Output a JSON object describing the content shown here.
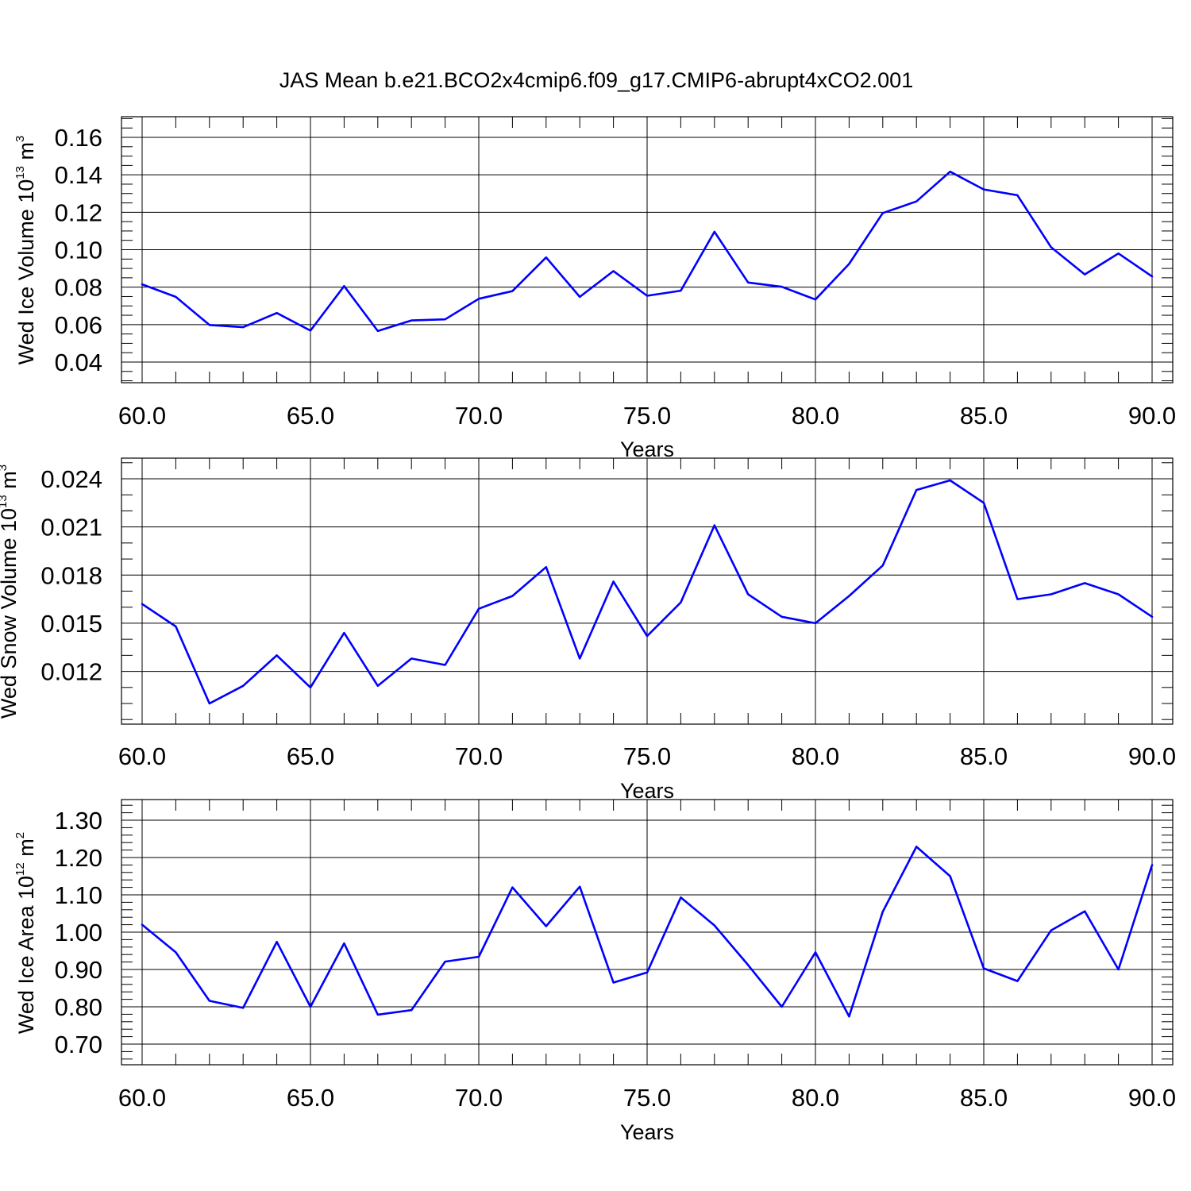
{
  "figure": {
    "title": "JAS Mean b.e21.BCO2x4cmip6.f09_g17.CMIP6-abrupt4xCO2.001"
  },
  "colors": {
    "series": "#0000ff",
    "axes": "#000000",
    "grid": "#7f7f7f"
  },
  "chart_data": [
    {
      "type": "line",
      "xlabel": "Years",
      "ylabel_prefix": "Wed Ice Volume 10",
      "ylabel_exp": "13",
      "ylabel_unit": " m",
      "ylabel_unit_exp": "3",
      "xlim": [
        60,
        90
      ],
      "ylim": [
        0.04,
        0.16
      ],
      "x_ticks": [
        60,
        65,
        70,
        75,
        80,
        85,
        90
      ],
      "x_tick_labels": [
        "60.0",
        "65.0",
        "70.0",
        "75.0",
        "80.0",
        "85.0",
        "90.0"
      ],
      "y_ticks": [
        0.04,
        0.06,
        0.08,
        0.1,
        0.12,
        0.14,
        0.16
      ],
      "y_tick_labels": [
        "0.04",
        "0.06",
        "0.08",
        "0.10",
        "0.12",
        "0.14",
        "0.16"
      ],
      "y_minor_step": 0.005,
      "x_minor_step": 1,
      "vertical_grid_x": [
        65,
        70,
        75,
        80,
        85
      ],
      "x": [
        60,
        61,
        62,
        63,
        64,
        65,
        66,
        67,
        68,
        69,
        70,
        71,
        72,
        73,
        74,
        75,
        76,
        77,
        78,
        79,
        80,
        81,
        82,
        83,
        84,
        85,
        86,
        87,
        88,
        89,
        90
      ],
      "values": [
        0.0815,
        0.0748,
        0.0598,
        0.0586,
        0.0662,
        0.0568,
        0.0806,
        0.0566,
        0.0622,
        0.0628,
        0.0738,
        0.0779,
        0.0959,
        0.0748,
        0.0886,
        0.0754,
        0.0781,
        0.1096,
        0.0825,
        0.0802,
        0.0734,
        0.0924,
        0.1196,
        0.1258,
        0.1417,
        0.1322,
        0.1291,
        0.1013,
        0.0868,
        0.098,
        0.0857
      ]
    },
    {
      "type": "line",
      "xlabel": "Years",
      "ylabel_prefix": "Wed Snow Volume 10",
      "ylabel_exp": "13",
      "ylabel_unit": " m",
      "ylabel_unit_exp": "3",
      "xlim": [
        60,
        90
      ],
      "ylim": [
        0.01,
        0.024
      ],
      "x_ticks": [
        60,
        65,
        70,
        75,
        80,
        85,
        90
      ],
      "x_tick_labels": [
        "60.0",
        "65.0",
        "70.0",
        "75.0",
        "80.0",
        "85.0",
        "90.0"
      ],
      "y_ticks": [
        0.012,
        0.015,
        0.018,
        0.021,
        0.024
      ],
      "y_tick_labels": [
        "0.012",
        "0.015",
        "0.018",
        "0.021",
        "0.024"
      ],
      "y_minor_step": 0.001,
      "x_minor_step": 1,
      "vertical_grid_x": [
        65,
        70,
        75,
        80,
        85
      ],
      "x": [
        60,
        61,
        62,
        63,
        64,
        65,
        66,
        67,
        68,
        69,
        70,
        71,
        72,
        73,
        74,
        75,
        76,
        77,
        78,
        79,
        80,
        81,
        82,
        83,
        84,
        85,
        86,
        87,
        88,
        89,
        90
      ],
      "values": [
        0.0162,
        0.0148,
        0.01,
        0.0111,
        0.013,
        0.011,
        0.0144,
        0.0111,
        0.0128,
        0.0124,
        0.0159,
        0.0167,
        0.0185,
        0.0128,
        0.0176,
        0.0142,
        0.0163,
        0.0211,
        0.0168,
        0.0154,
        0.015,
        0.0167,
        0.0186,
        0.0233,
        0.0239,
        0.0225,
        0.0165,
        0.0168,
        0.0175,
        0.0168,
        0.0154
      ]
    },
    {
      "type": "line",
      "xlabel": "Years",
      "ylabel_prefix": "Wed Ice Area 10",
      "ylabel_exp": "12",
      "ylabel_unit": " m",
      "ylabel_unit_exp": "2",
      "xlim": [
        60,
        90
      ],
      "ylim": [
        0.7,
        1.3
      ],
      "x_ticks": [
        60,
        65,
        70,
        75,
        80,
        85,
        90
      ],
      "x_tick_labels": [
        "60.0",
        "65.0",
        "70.0",
        "75.0",
        "80.0",
        "85.0",
        "90.0"
      ],
      "y_ticks": [
        0.7,
        0.8,
        0.9,
        1.0,
        1.1,
        1.2,
        1.3
      ],
      "y_tick_labels": [
        "0.70",
        "0.80",
        "0.90",
        "1.00",
        "1.10",
        "1.20",
        "1.30"
      ],
      "y_minor_step": 0.02,
      "x_minor_step": 1,
      "vertical_grid_x": [
        65,
        70,
        75,
        80,
        85
      ],
      "x": [
        60,
        61,
        62,
        63,
        64,
        65,
        66,
        67,
        68,
        69,
        70,
        71,
        72,
        73,
        74,
        75,
        76,
        77,
        78,
        79,
        80,
        81,
        82,
        83,
        84,
        85,
        86,
        87,
        88,
        89,
        90
      ],
      "values": [
        1.02,
        0.946,
        0.816,
        0.797,
        0.974,
        0.8,
        0.97,
        0.779,
        0.791,
        0.921,
        0.934,
        1.12,
        1.016,
        1.122,
        0.865,
        0.892,
        1.093,
        1.018,
        0.912,
        0.8,
        0.946,
        0.774,
        1.055,
        1.229,
        1.15,
        0.903,
        0.869,
        1.005,
        1.056,
        0.9,
        1.18
      ]
    }
  ]
}
